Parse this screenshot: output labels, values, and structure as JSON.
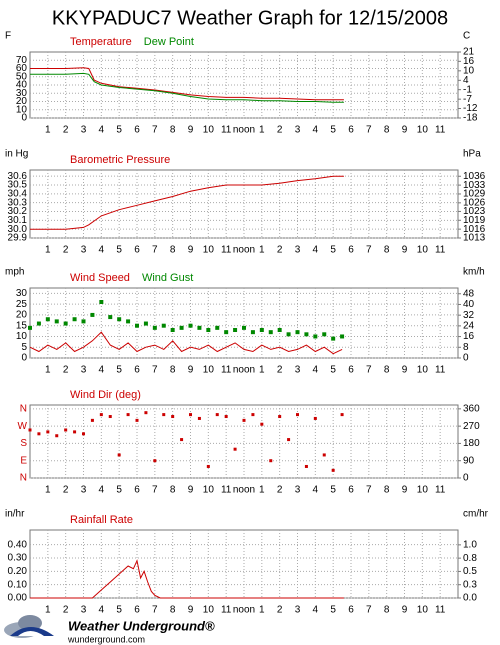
{
  "page_title": "KKYPADUC7 Weather Graph for 12/15/2008",
  "footer": {
    "brand": "Weather Underground®",
    "url": "wunderground.com"
  },
  "chart_data": [
    {
      "type": "line",
      "ylabel": "F",
      "y2label": "C",
      "x": [
        0,
        1,
        2,
        3,
        3.3,
        3.6,
        4,
        5,
        6,
        7,
        8,
        9,
        10,
        11,
        12,
        13,
        14,
        15,
        16,
        17,
        17.6
      ],
      "series": [
        {
          "name": "Temperature",
          "color": "#cc0000",
          "style": "line",
          "values": [
            60,
            60,
            60,
            61,
            60,
            46,
            42,
            38,
            36,
            34,
            31,
            28,
            26,
            25,
            25,
            24,
            24,
            23,
            22,
            22,
            22
          ]
        },
        {
          "name": "Dew Point",
          "color": "#008800",
          "style": "line",
          "values": [
            53,
            53,
            53,
            54,
            53,
            44,
            40,
            37,
            35,
            33,
            30,
            26,
            23,
            22,
            22,
            21,
            21,
            20,
            20,
            19,
            19
          ]
        }
      ],
      "xlim": [
        0,
        24
      ],
      "xticks": [
        1,
        2,
        3,
        4,
        5,
        6,
        7,
        8,
        9,
        10,
        11,
        {
          "value": 12,
          "label": "noon"
        },
        {
          "value": 13,
          "label": "1"
        },
        {
          "value": 14,
          "label": "2"
        },
        {
          "value": 15,
          "label": "3"
        },
        {
          "value": 16,
          "label": "4"
        },
        {
          "value": 17,
          "label": "5"
        },
        {
          "value": 18,
          "label": "6"
        },
        {
          "value": 19,
          "label": "7"
        },
        {
          "value": 20,
          "label": "8"
        },
        {
          "value": 21,
          "label": "9"
        },
        {
          "value": 22,
          "label": "10"
        },
        {
          "value": 23,
          "label": "11"
        }
      ],
      "ylim": [
        0,
        80
      ],
      "yticks": [
        0,
        10,
        20,
        30,
        40,
        50,
        60,
        70
      ],
      "y2lim": [
        -17.8,
        21.1
      ],
      "y2ticks": [
        {
          "value": -17.8,
          "label": "-18"
        },
        {
          "value": -12.2,
          "label": "-12"
        },
        {
          "value": -6.7,
          "label": "-7"
        },
        {
          "value": -1.1,
          "label": "-1"
        },
        {
          "value": 4.4,
          "label": "4"
        },
        10,
        {
          "value": 15.6,
          "label": "16"
        },
        {
          "value": 21.1,
          "label": "21"
        }
      ],
      "grid": true
    },
    {
      "type": "line",
      "ylabel": "in Hg",
      "y2label": "hPa",
      "x": [
        0,
        2,
        3,
        3.3,
        4,
        5,
        6,
        7,
        8,
        9,
        10,
        11,
        12,
        13,
        14,
        15,
        16,
        17,
        17.6
      ],
      "series": [
        {
          "name": "Barometric Pressure",
          "color": "#cc0000",
          "style": "line",
          "values": [
            30.0,
            30.0,
            30.02,
            30.05,
            30.15,
            30.22,
            30.27,
            30.32,
            30.37,
            30.43,
            30.47,
            30.5,
            30.5,
            30.5,
            30.52,
            30.55,
            30.57,
            30.6,
            30.6
          ]
        }
      ],
      "xlim": [
        0,
        24
      ],
      "xticks": [
        1,
        2,
        3,
        4,
        5,
        6,
        7,
        8,
        9,
        10,
        11,
        {
          "value": 12,
          "label": "noon"
        },
        {
          "value": 13,
          "label": "1"
        },
        {
          "value": 14,
          "label": "2"
        },
        {
          "value": 15,
          "label": "3"
        },
        {
          "value": 16,
          "label": "4"
        },
        {
          "value": 17,
          "label": "5"
        },
        {
          "value": 18,
          "label": "6"
        },
        {
          "value": 19,
          "label": "7"
        },
        {
          "value": 20,
          "label": "8"
        },
        {
          "value": 21,
          "label": "9"
        },
        {
          "value": 22,
          "label": "10"
        },
        {
          "value": 23,
          "label": "11"
        }
      ],
      "ylim": [
        29.9,
        30.67
      ],
      "yticks": [
        29.9,
        {
          "value": 30,
          "label": "30.0"
        },
        30.1,
        30.2,
        30.3,
        30.4,
        30.5,
        30.6
      ],
      "y2lim": [
        1012.5,
        1038.6
      ],
      "y2ticks": [
        {
          "value": 1012.5,
          "label": "1013"
        },
        {
          "value": 1015.9,
          "label": "1016"
        },
        {
          "value": 1019.3,
          "label": "1019"
        },
        {
          "value": 1022.7,
          "label": "1023"
        },
        1026,
        {
          "value": 1029.4,
          "label": "1029"
        },
        {
          "value": 1032.8,
          "label": "1033"
        },
        {
          "value": 1036.2,
          "label": "1036"
        }
      ],
      "grid": true
    },
    {
      "type": "line",
      "ylabel": "mph",
      "y2label": "km/h",
      "x": [
        0,
        0.5,
        1,
        1.5,
        2,
        2.5,
        3,
        3.5,
        4,
        4.5,
        5,
        5.5,
        6,
        6.5,
        7,
        7.5,
        8,
        8.5,
        9,
        9.5,
        10,
        10.5,
        11,
        11.5,
        12,
        12.5,
        13,
        13.5,
        14,
        14.5,
        15,
        15.5,
        16,
        16.5,
        17,
        17.5
      ],
      "series": [
        {
          "name": "Wind Speed",
          "color": "#cc0000",
          "style": "line",
          "values": [
            5,
            3,
            6,
            4,
            7,
            3,
            5,
            8,
            12,
            6,
            4,
            7,
            3,
            5,
            6,
            4,
            8,
            3,
            5,
            4,
            6,
            3,
            5,
            7,
            4,
            3,
            6,
            4,
            5,
            3,
            4,
            6,
            3,
            5,
            2,
            4
          ]
        },
        {
          "name": "Wind Gust",
          "color": "#008800",
          "style": "markers",
          "values": [
            14,
            16,
            18,
            17,
            16,
            18,
            17,
            20,
            26,
            19,
            18,
            17,
            15,
            16,
            14,
            15,
            13,
            14,
            15,
            14,
            13,
            14,
            12,
            13,
            14,
            12,
            13,
            12,
            13,
            11,
            12,
            11,
            10,
            11,
            9,
            10
          ]
        }
      ],
      "xlim": [
        0,
        24
      ],
      "xticks": [
        1,
        2,
        3,
        4,
        5,
        6,
        7,
        8,
        9,
        10,
        11,
        {
          "value": 12,
          "label": "noon"
        },
        {
          "value": 13,
          "label": "1"
        },
        {
          "value": 14,
          "label": "2"
        },
        {
          "value": 15,
          "label": "3"
        },
        {
          "value": 16,
          "label": "4"
        },
        {
          "value": 17,
          "label": "5"
        },
        {
          "value": 18,
          "label": "6"
        },
        {
          "value": 19,
          "label": "7"
        },
        {
          "value": 20,
          "label": "8"
        },
        {
          "value": 21,
          "label": "9"
        },
        {
          "value": 22,
          "label": "10"
        },
        {
          "value": 23,
          "label": "11"
        }
      ],
      "ylim": [
        0,
        32.5
      ],
      "yticks": [
        0,
        5,
        10,
        15,
        20,
        25,
        30
      ],
      "y2lim": [
        0,
        52.3
      ],
      "y2ticks": [
        0,
        8,
        16,
        24,
        32,
        40,
        48
      ],
      "grid": true
    },
    {
      "type": "scatter",
      "ytick_color": "#cc0000",
      "x": [
        0,
        0.5,
        1,
        1.5,
        2,
        2.5,
        3,
        3.5,
        4,
        4.5,
        5,
        5.5,
        6,
        6.5,
        7,
        7.5,
        8,
        8.5,
        9,
        9.5,
        10,
        10.5,
        11,
        11.5,
        12,
        12.5,
        13,
        13.5,
        14,
        14.5,
        15,
        15.5,
        16,
        16.5,
        17,
        17.5
      ],
      "series": [
        {
          "name": "Wind Dir (deg)",
          "color": "#cc0000",
          "style": "markers",
          "values": [
            250,
            230,
            240,
            220,
            250,
            240,
            230,
            300,
            330,
            320,
            120,
            330,
            300,
            340,
            90,
            330,
            320,
            200,
            330,
            310,
            60,
            330,
            320,
            150,
            300,
            330,
            280,
            90,
            320,
            200,
            330,
            60,
            310,
            120,
            40,
            330
          ]
        }
      ],
      "xlim": [
        0,
        24
      ],
      "xticks": [
        1,
        2,
        3,
        4,
        5,
        6,
        7,
        8,
        9,
        10,
        11,
        {
          "value": 12,
          "label": "noon"
        },
        {
          "value": 13,
          "label": "1"
        },
        {
          "value": 14,
          "label": "2"
        },
        {
          "value": 15,
          "label": "3"
        },
        {
          "value": 16,
          "label": "4"
        },
        {
          "value": 17,
          "label": "5"
        },
        {
          "value": 18,
          "label": "6"
        },
        {
          "value": 19,
          "label": "7"
        },
        {
          "value": 20,
          "label": "8"
        },
        {
          "value": 21,
          "label": "9"
        },
        {
          "value": 22,
          "label": "10"
        },
        {
          "value": 23,
          "label": "11"
        }
      ],
      "ylim": [
        0,
        380
      ],
      "yticks": [
        {
          "value": 0,
          "label": "N"
        },
        {
          "value": 90,
          "label": "E"
        },
        {
          "value": 180,
          "label": "S"
        },
        {
          "value": 270,
          "label": "W"
        },
        {
          "value": 360,
          "label": "N"
        }
      ],
      "y2lim": [
        0,
        380
      ],
      "y2ticks": [
        0,
        90,
        180,
        270,
        360
      ],
      "grid": true
    },
    {
      "type": "line",
      "ylabel": "in/hr",
      "y2label": "cm/hr",
      "x": [
        0,
        3.5,
        4,
        4.5,
        5,
        5.5,
        5.8,
        6,
        6.2,
        6.4,
        6.6,
        6.8,
        7,
        7.3,
        17.6
      ],
      "series": [
        {
          "name": "Rainfall Rate",
          "color": "#cc0000",
          "style": "line",
          "values": [
            0,
            0,
            0.06,
            0.12,
            0.18,
            0.24,
            0.22,
            0.28,
            0.15,
            0.2,
            0.12,
            0.05,
            0.02,
            0,
            0
          ]
        }
      ],
      "xlim": [
        0,
        24
      ],
      "xticks": [
        1,
        2,
        3,
        4,
        5,
        6,
        7,
        8,
        9,
        10,
        11,
        {
          "value": 12,
          "label": "noon"
        },
        {
          "value": 13,
          "label": "1"
        },
        {
          "value": 14,
          "label": "2"
        },
        {
          "value": 15,
          "label": "3"
        },
        {
          "value": 16,
          "label": "4"
        },
        {
          "value": 17,
          "label": "5"
        },
        {
          "value": 18,
          "label": "6"
        },
        {
          "value": 19,
          "label": "7"
        },
        {
          "value": 20,
          "label": "8"
        },
        {
          "value": 21,
          "label": "9"
        },
        {
          "value": 22,
          "label": "10"
        },
        {
          "value": 23,
          "label": "11"
        }
      ],
      "ylim": [
        0,
        0.51
      ],
      "yticks": [
        {
          "value": 0,
          "label": "0.00"
        },
        {
          "value": 0.1,
          "label": "0.10"
        },
        {
          "value": 0.2,
          "label": "0.20"
        },
        {
          "value": 0.3,
          "label": "0.30"
        },
        {
          "value": 0.4,
          "label": "0.40"
        }
      ],
      "y2lim": [
        0,
        1.3
      ],
      "y2ticks": [
        {
          "value": 0,
          "label": "0.0"
        },
        {
          "value": 0.254,
          "label": "0.3"
        },
        {
          "value": 0.508,
          "label": "0.5"
        },
        {
          "value": 0.762,
          "label": "0.8"
        },
        {
          "value": 1.016,
          "label": "1.0"
        }
      ],
      "grid": true
    }
  ]
}
